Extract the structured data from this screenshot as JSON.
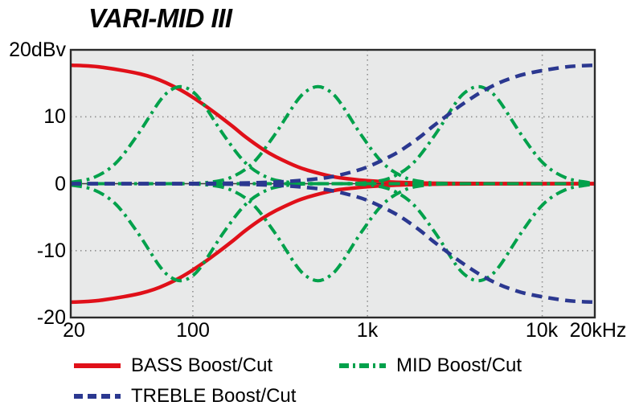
{
  "colors": {
    "bass": "#e01019",
    "mid": "#00a14b",
    "treble": "#2b3890",
    "grid": "#909090",
    "zero_line": "#3a3a3a",
    "frame": "#2b2b2b",
    "plot_bg": "#e8e9e9"
  },
  "chart_data": {
    "type": "line",
    "title": "VARI-MID III",
    "x_scale": "log",
    "xlim": [
      20,
      20000
    ],
    "ylim": [
      -20,
      20
    ],
    "grid": true,
    "legend_position": "below",
    "x_ticks": [
      {
        "f": 20,
        "label": "20"
      },
      {
        "f": 100,
        "label": "100"
      },
      {
        "f": 1000,
        "label": "1k"
      },
      {
        "f": 10000,
        "label": "10k"
      },
      {
        "f": 20000,
        "label": "20kHz"
      }
    ],
    "y_ticks": [
      {
        "v": 20,
        "label": "20dBv"
      },
      {
        "v": 10,
        "label": "10"
      },
      {
        "v": 0,
        "label": "0"
      },
      {
        "v": -10,
        "label": "-10"
      },
      {
        "v": -20,
        "label": "-20"
      }
    ],
    "x_gridlines": [
      100,
      1000,
      10000
    ],
    "y_gridlines": [
      10,
      -10
    ],
    "zero_line": 0,
    "legend": [
      {
        "label": "BASS Boost/Cut",
        "color": "bass",
        "style": "solid"
      },
      {
        "label": "MID Boost/Cut",
        "color": "mid",
        "style": "dashdot"
      },
      {
        "label": "TREBLE Boost/Cut",
        "color": "treble",
        "style": "dashed"
      }
    ],
    "series": [
      {
        "name": "bass_shelf",
        "color": "bass",
        "style": "solid",
        "width": 4.5,
        "mirror": true,
        "points": [
          [
            20,
            17.7
          ],
          [
            25,
            17.6
          ],
          [
            30,
            17.4
          ],
          [
            40,
            16.9
          ],
          [
            50,
            16.4
          ],
          [
            60,
            15.8
          ],
          [
            70,
            15.1
          ],
          [
            85,
            14.0
          ],
          [
            100,
            12.9
          ],
          [
            120,
            11.5
          ],
          [
            140,
            10.2
          ],
          [
            170,
            8.5
          ],
          [
            200,
            7.0
          ],
          [
            250,
            5.2
          ],
          [
            300,
            4.0
          ],
          [
            400,
            2.5
          ],
          [
            500,
            1.7
          ],
          [
            650,
            1.0
          ],
          [
            800,
            0.7
          ],
          [
            1000,
            0.45
          ],
          [
            1300,
            0.27
          ],
          [
            1700,
            0.16
          ],
          [
            2200,
            0.09
          ],
          [
            3000,
            0.05
          ],
          [
            4500,
            0.02
          ],
          [
            7000,
            0.01
          ],
          [
            12000,
            0.0
          ],
          [
            20000,
            0.0
          ]
        ]
      },
      {
        "name": "mid_bell_low_85Hz",
        "color": "mid",
        "style": "dashdot",
        "width": 4,
        "mirror": true,
        "points": [
          [
            20,
            0.2
          ],
          [
            27,
            0.9
          ],
          [
            36,
            3.0
          ],
          [
            48,
            7.2
          ],
          [
            64,
            12.2
          ],
          [
            74,
            13.9
          ],
          [
            85,
            14.5
          ],
          [
            98,
            13.9
          ],
          [
            113,
            12.2
          ],
          [
            151,
            7.2
          ],
          [
            202,
            3.0
          ],
          [
            269,
            0.9
          ],
          [
            358,
            0.2
          ],
          [
            478,
            0.03
          ],
          [
            1000,
            0.0
          ],
          [
            3000,
            0.0
          ],
          [
            8000,
            0.0
          ],
          [
            20000,
            0.0
          ]
        ]
      },
      {
        "name": "mid_bell_mid_520Hz",
        "color": "mid",
        "style": "dashdot",
        "width": 4,
        "mirror": true,
        "points": [
          [
            20,
            0.0
          ],
          [
            60,
            0.0
          ],
          [
            92,
            0.03
          ],
          [
            123,
            0.2
          ],
          [
            164,
            0.9
          ],
          [
            219,
            3.0
          ],
          [
            292,
            7.2
          ],
          [
            390,
            12.2
          ],
          [
            451,
            13.9
          ],
          [
            520,
            14.5
          ],
          [
            600,
            13.9
          ],
          [
            694,
            12.2
          ],
          [
            925,
            7.2
          ],
          [
            1233,
            3.0
          ],
          [
            1644,
            0.9
          ],
          [
            2193,
            0.2
          ],
          [
            2924,
            0.03
          ],
          [
            5000,
            0.0
          ],
          [
            10000,
            0.0
          ],
          [
            20000,
            0.0
          ]
        ]
      },
      {
        "name": "mid_bell_high_4300Hz",
        "color": "mid",
        "style": "dashdot",
        "width": 4,
        "mirror": true,
        "points": [
          [
            20,
            0.0
          ],
          [
            200,
            0.0
          ],
          [
            500,
            0.0
          ],
          [
            765,
            0.03
          ],
          [
            1020,
            0.2
          ],
          [
            1360,
            0.9
          ],
          [
            1813,
            3.0
          ],
          [
            2418,
            7.2
          ],
          [
            3224,
            12.2
          ],
          [
            3729,
            13.9
          ],
          [
            4300,
            14.5
          ],
          [
            4958,
            13.9
          ],
          [
            5734,
            12.2
          ],
          [
            7647,
            7.2
          ],
          [
            10196,
            3.0
          ],
          [
            13596,
            0.9
          ],
          [
            18131,
            0.2
          ],
          [
            20000,
            0.1
          ]
        ]
      },
      {
        "name": "treble_shelf",
        "color": "treble",
        "style": "dashed",
        "width": 4.5,
        "mirror": true,
        "points": [
          [
            20,
            0.0
          ],
          [
            35,
            0.0
          ],
          [
            60,
            0.01
          ],
          [
            90,
            0.02
          ],
          [
            130,
            0.05
          ],
          [
            180,
            0.09
          ],
          [
            235,
            0.16
          ],
          [
            310,
            0.27
          ],
          [
            400,
            0.45
          ],
          [
            500,
            0.7
          ],
          [
            615,
            1.0
          ],
          [
            800,
            1.7
          ],
          [
            1000,
            2.5
          ],
          [
            1330,
            4.0
          ],
          [
            1600,
            5.2
          ],
          [
            2000,
            7.0
          ],
          [
            2350,
            8.5
          ],
          [
            2860,
            10.2
          ],
          [
            3330,
            11.5
          ],
          [
            4000,
            12.9
          ],
          [
            4700,
            14.0
          ],
          [
            5700,
            15.1
          ],
          [
            6700,
            15.8
          ],
          [
            8000,
            16.4
          ],
          [
            10000,
            16.9
          ],
          [
            13300,
            17.4
          ],
          [
            16000,
            17.6
          ],
          [
            20000,
            17.7
          ]
        ]
      }
    ]
  }
}
